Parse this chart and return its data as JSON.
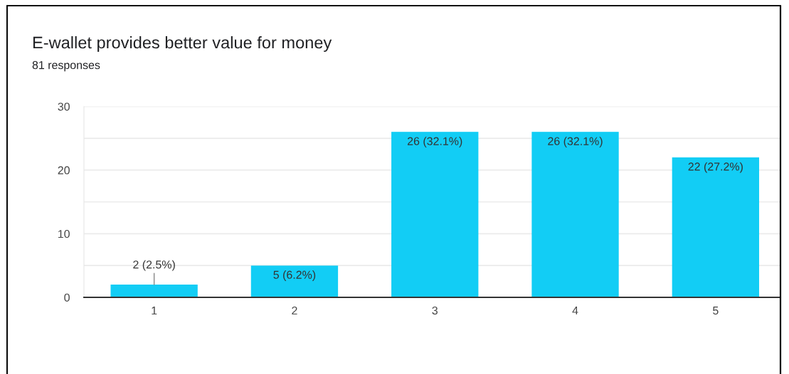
{
  "chart_data": {
    "type": "bar",
    "title": "E-wallet provides better value for money",
    "subtitle": "81 responses",
    "categories": [
      "1",
      "2",
      "3",
      "4",
      "5"
    ],
    "values": [
      2,
      5,
      26,
      26,
      22
    ],
    "value_labels": [
      "2 (2.5%)",
      "5 (6.2%)",
      "26 (32.1%)",
      "26 (32.1%)",
      "22 (27.2%)"
    ],
    "color": "#12cdf5",
    "ylim": [
      0,
      30
    ],
    "yticks": [
      0,
      {
        "value": 5,
        "label": null
      },
      10,
      {
        "value": 15,
        "label": null
      },
      20,
      {
        "value": 25,
        "label": null
      },
      30
    ],
    "grid": "y"
  }
}
